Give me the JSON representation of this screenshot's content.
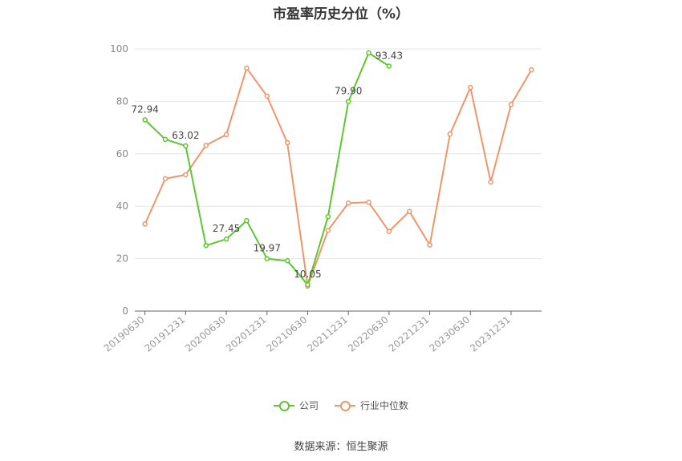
{
  "chart_data": {
    "type": "line",
    "title": "市盈率历史分位（%）",
    "x": [
      "20190630",
      "20190930",
      "20191231",
      "20200331",
      "20200630",
      "20200930",
      "20201231",
      "20210331",
      "20210630",
      "20210930",
      "20211231",
      "20220331",
      "20220630",
      "20220930",
      "20221231",
      "20230331",
      "20230630",
      "20230930",
      "20231231",
      "20240331"
    ],
    "x_tick_labels": [
      "20190630",
      "20191231",
      "20200630",
      "20201231",
      "20210630",
      "20211231",
      "20220630",
      "20221231",
      "20230630",
      "20231231"
    ],
    "ylim": [
      0,
      100
    ],
    "y_ticks": [
      0,
      20,
      40,
      60,
      80,
      100
    ],
    "grid": true,
    "legend_position": "bottom",
    "series": [
      {
        "name": "公司",
        "color": "#5cc72e",
        "values": [
          72.94,
          65.5,
          63.02,
          25.0,
          27.45,
          34.5,
          19.97,
          19.2,
          10.05,
          36.0,
          79.9,
          98.5,
          93.43,
          null,
          null,
          null,
          null,
          null,
          null,
          null
        ],
        "data_labels": [
          {
            "index": 0,
            "text": "72.94"
          },
          {
            "index": 2,
            "text": "63.02"
          },
          {
            "index": 4,
            "text": "27.45"
          },
          {
            "index": 6,
            "text": "19.97"
          },
          {
            "index": 8,
            "text": "10.05"
          },
          {
            "index": 10,
            "text": "79.90"
          },
          {
            "index": 12,
            "text": "93.43"
          }
        ]
      },
      {
        "name": "行业中位数",
        "color": "#f0956a",
        "values": [
          33.2,
          50.5,
          52.0,
          63.2,
          67.3,
          92.7,
          82.0,
          64.2,
          9.5,
          30.8,
          41.2,
          41.5,
          30.4,
          38.0,
          25.2,
          67.5,
          85.3,
          49.2,
          78.8,
          92.0
        ],
        "data_labels": []
      }
    ]
  },
  "source": "数据来源：恒生聚源"
}
